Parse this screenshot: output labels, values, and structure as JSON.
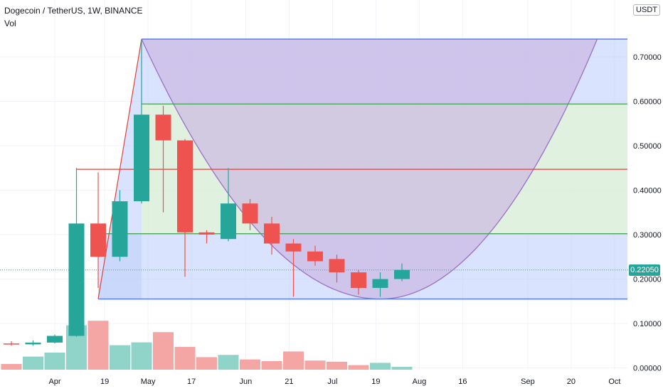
{
  "header": {
    "symbol_label": "Dogecoin / TetherUS, 1W, BINANCE",
    "volume_label": "Vol"
  },
  "price_axis": {
    "currency": "USDT",
    "last_price": "0.22050",
    "last_price_color": "#26a69a"
  },
  "colors": {
    "up": "#26a69a",
    "down": "#ef5350",
    "vol_up": "#8fd3c9",
    "vol_down": "#f4a6a5",
    "grid": "#f0f3fa",
    "fill_blue": "#bfd0fb",
    "fill_green": "#d6ecd6",
    "fill_purple": "#c9b6e2",
    "line_blue": "#5b7de8",
    "line_green": "#3fa04c",
    "line_red": "#e0413c",
    "line_purple": "#9d6fc8"
  },
  "chart_data": {
    "type": "candlestick",
    "title": "Dogecoin / TetherUS, 1W, BINANCE",
    "ylim": [
      -0.02,
      0.78
    ],
    "y_ticks": [
      "0.70000",
      "0.60000",
      "0.50000",
      "0.40000",
      "0.30000",
      "0.20000",
      "0.10000",
      "0.00000"
    ],
    "x_ticks": [
      {
        "label": "Apr",
        "week": 2
      },
      {
        "label": "19",
        "week": 4.3
      },
      {
        "label": "May",
        "week": 6.3
      },
      {
        "label": "17",
        "week": 8.3
      },
      {
        "label": "Jun",
        "week": 10.8
      },
      {
        "label": "21",
        "week": 12.8
      },
      {
        "label": "Jul",
        "week": 14.8
      },
      {
        "label": "19",
        "week": 16.8
      },
      {
        "label": "Aug",
        "week": 18.8
      },
      {
        "label": "16",
        "week": 20.8
      },
      {
        "label": "Sep",
        "week": 23.8
      },
      {
        "label": "20",
        "week": 25.8
      },
      {
        "label": "Oct",
        "week": 27.8
      }
    ],
    "candles": [
      {
        "week": 0,
        "open": 0.055,
        "high": 0.06,
        "low": 0.05,
        "close": 0.053
      },
      {
        "week": 1,
        "open": 0.053,
        "high": 0.062,
        "low": 0.05,
        "close": 0.057
      },
      {
        "week": 2,
        "open": 0.057,
        "high": 0.075,
        "low": 0.055,
        "close": 0.072
      },
      {
        "week": 3,
        "open": 0.072,
        "high": 0.45,
        "low": 0.07,
        "close": 0.325
      },
      {
        "week": 4,
        "open": 0.325,
        "high": 0.44,
        "low": 0.18,
        "close": 0.25
      },
      {
        "week": 5,
        "open": 0.25,
        "high": 0.4,
        "low": 0.24,
        "close": 0.375
      },
      {
        "week": 6,
        "open": 0.375,
        "high": 0.74,
        "low": 0.37,
        "close": 0.57
      },
      {
        "week": 7,
        "open": 0.57,
        "high": 0.59,
        "low": 0.35,
        "close": 0.512
      },
      {
        "week": 8,
        "open": 0.512,
        "high": 0.515,
        "low": 0.205,
        "close": 0.305
      },
      {
        "week": 9,
        "open": 0.305,
        "high": 0.31,
        "low": 0.28,
        "close": 0.3
      },
      {
        "week": 10,
        "open": 0.29,
        "high": 0.45,
        "low": 0.285,
        "close": 0.37
      },
      {
        "week": 11,
        "open": 0.37,
        "high": 0.38,
        "low": 0.31,
        "close": 0.325
      },
      {
        "week": 12,
        "open": 0.325,
        "high": 0.34,
        "low": 0.255,
        "close": 0.28
      },
      {
        "week": 13,
        "open": 0.28,
        "high": 0.29,
        "low": 0.16,
        "close": 0.262
      },
      {
        "week": 14,
        "open": 0.262,
        "high": 0.275,
        "low": 0.23,
        "close": 0.24
      },
      {
        "week": 15,
        "open": 0.245,
        "high": 0.255,
        "low": 0.192,
        "close": 0.215
      },
      {
        "week": 16,
        "open": 0.215,
        "high": 0.22,
        "low": 0.165,
        "close": 0.18
      },
      {
        "week": 17,
        "open": 0.18,
        "high": 0.215,
        "low": 0.16,
        "close": 0.2
      },
      {
        "week": 18,
        "open": 0.2,
        "high": 0.235,
        "low": 0.195,
        "close": 0.2205
      }
    ],
    "volume": {
      "scale_max": 1,
      "values": [
        0.1,
        0.23,
        0.3,
        0.78,
        0.86,
        0.43,
        0.48,
        0.66,
        0.4,
        0.22,
        0.26,
        0.18,
        0.15,
        0.32,
        0.16,
        0.14,
        0.08,
        0.12,
        0.05
      ]
    },
    "overlay": {
      "levels": {
        "bottom": 0.155,
        "mid_low": 0.302,
        "mid_red": 0.447,
        "mid_high": 0.594,
        "top": 0.74
      },
      "left_anchor": {
        "week": 4,
        "price": 0.155
      },
      "peak": {
        "week": 6,
        "price": 0.74
      },
      "parabola_vertex": {
        "week": 17,
        "price": 0.155
      },
      "parabola_right_top": {
        "week": 27,
        "price": 0.74
      },
      "red_line_start_week": 3
    }
  }
}
